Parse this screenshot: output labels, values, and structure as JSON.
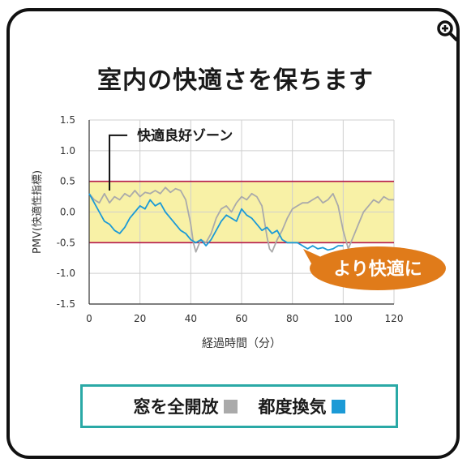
{
  "colors": {
    "zone_fill": "#f8f1a6",
    "zone_border": "#b3174b",
    "window_series": "#aaaaaa",
    "ventilation_series": "#1c9ad6",
    "callout": "#e07b1a",
    "legend_border": "#2aa9a6"
  },
  "icons": {
    "zoom": "zoom-in-icon"
  },
  "chart_data": {
    "type": "line",
    "title": "室内の快適さを保ちます",
    "xlabel": "経過時間（分）",
    "ylabel": "PMV(快適性指標)",
    "xlim": [
      0,
      120
    ],
    "ylim": [
      -1.5,
      1.5
    ],
    "xticks": [
      "0",
      "20",
      "40",
      "60",
      "80",
      "100",
      "120"
    ],
    "yticks": [
      "1.5",
      "1.0",
      "0.5",
      "0.0",
      "-0.5",
      "-1.0",
      "-1.5"
    ],
    "comfort_zone": [
      -0.5,
      0.5
    ],
    "grid": true,
    "annotations": {
      "zone_label": "快適良好ゾーン",
      "callout": "より快適に"
    },
    "series": [
      {
        "name": "窓を全開放",
        "color": "#aaaaaa",
        "x": [
          0,
          2,
          4,
          6,
          8,
          10,
          12,
          14,
          16,
          18,
          20,
          22,
          24,
          26,
          28,
          30,
          32,
          34,
          36,
          38,
          40,
          41,
          42,
          43,
          44,
          46,
          48,
          50,
          52,
          54,
          56,
          58,
          60,
          62,
          64,
          66,
          68,
          70,
          71,
          72,
          73,
          74,
          76,
          78,
          80,
          82,
          84,
          86,
          88,
          90,
          92,
          94,
          96,
          98,
          100,
          102,
          104,
          106,
          108,
          110,
          112,
          114,
          116,
          118,
          120
        ],
        "values": [
          0.3,
          0.2,
          0.15,
          0.3,
          0.15,
          0.25,
          0.2,
          0.3,
          0.25,
          0.35,
          0.25,
          0.32,
          0.3,
          0.35,
          0.3,
          0.4,
          0.32,
          0.38,
          0.35,
          0.2,
          -0.2,
          -0.5,
          -0.65,
          -0.55,
          -0.45,
          -0.5,
          -0.35,
          -0.1,
          0.05,
          0.1,
          0.0,
          0.15,
          0.25,
          0.2,
          0.3,
          0.25,
          0.1,
          -0.4,
          -0.6,
          -0.65,
          -0.55,
          -0.45,
          -0.3,
          -0.1,
          0.05,
          0.1,
          0.15,
          0.15,
          0.2,
          0.25,
          0.15,
          0.2,
          0.3,
          0.1,
          -0.3,
          -0.6,
          -0.4,
          -0.2,
          0.0,
          0.1,
          0.2,
          0.15,
          0.25,
          0.2,
          0.2
        ]
      },
      {
        "name": "都度換気",
        "color": "#1c9ad6",
        "x": [
          0,
          2,
          4,
          6,
          8,
          10,
          12,
          14,
          16,
          18,
          20,
          22,
          24,
          26,
          28,
          30,
          32,
          34,
          36,
          38,
          40,
          42,
          44,
          46,
          48,
          50,
          52,
          54,
          56,
          58,
          60,
          62,
          64,
          66,
          68,
          70,
          72,
          74,
          76,
          78,
          80,
          82,
          84,
          86,
          88,
          90,
          92,
          94,
          96,
          98,
          100
        ],
        "values": [
          0.3,
          0.15,
          0.0,
          -0.15,
          -0.2,
          -0.3,
          -0.35,
          -0.25,
          -0.1,
          0.0,
          0.1,
          0.05,
          0.2,
          0.1,
          0.15,
          0.0,
          -0.1,
          -0.2,
          -0.3,
          -0.35,
          -0.45,
          -0.5,
          -0.45,
          -0.55,
          -0.45,
          -0.3,
          -0.15,
          -0.05,
          -0.1,
          -0.15,
          0.05,
          -0.05,
          -0.1,
          -0.2,
          -0.3,
          -0.25,
          -0.35,
          -0.3,
          -0.45,
          -0.5,
          -0.5,
          -0.5,
          -0.55,
          -0.6,
          -0.55,
          -0.6,
          -0.58,
          -0.62,
          -0.6,
          -0.55,
          -0.55
        ]
      }
    ]
  },
  "legend": [
    {
      "label": "窓を全開放",
      "color": "#aaaaaa"
    },
    {
      "label": "都度換気",
      "color": "#1c9ad6"
    }
  ]
}
